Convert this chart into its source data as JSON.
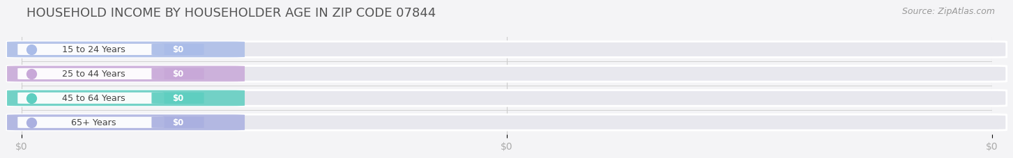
{
  "title": "HOUSEHOLD INCOME BY HOUSEHOLDER AGE IN ZIP CODE 07844",
  "source": "Source: ZipAtlas.com",
  "categories": [
    "15 to 24 Years",
    "25 to 44 Years",
    "45 to 64 Years",
    "65+ Years"
  ],
  "values": [
    0,
    0,
    0,
    0
  ],
  "bar_colors": [
    "#aabce8",
    "#c8a8d8",
    "#5ecec0",
    "#aab0e0"
  ],
  "background_color": "#f4f4f6",
  "bar_bg_color": "#e8e8ee",
  "title_fontsize": 13,
  "source_fontsize": 9,
  "tick_fontsize": 10,
  "bar_height": 0.62,
  "xtick_labels": [
    "$0",
    "$0",
    "$0"
  ]
}
